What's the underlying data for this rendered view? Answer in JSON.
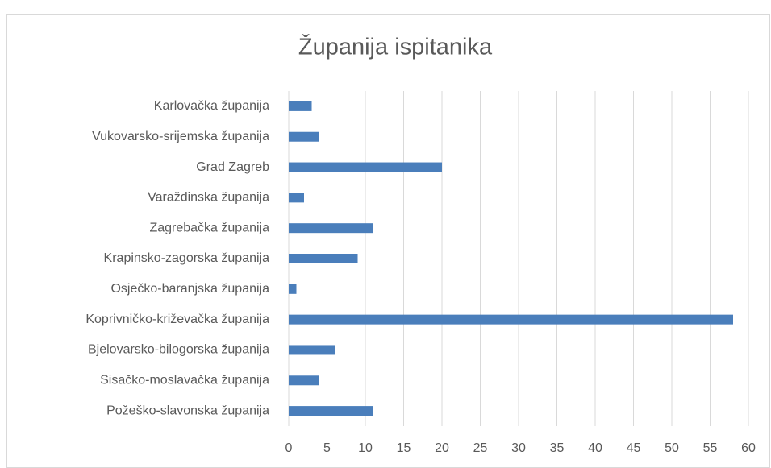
{
  "chart_data": {
    "type": "bar",
    "orientation": "horizontal",
    "title": "Županija ispitanika",
    "categories": [
      "Karlovačka županija",
      "Vukovarsko-srijemska županija",
      "Grad Zagreb",
      "Varaždinska županija",
      "Zagrebačka županija",
      "Krapinsko-zagorska županija",
      "Osječko-baranjska županija",
      "Koprivničko-križevačka županija",
      "Bjelovarsko-bilogorska županija",
      "Sisačko-moslavačka županija",
      "Požeško-slavonska županija"
    ],
    "values": [
      3,
      4,
      20,
      2,
      11,
      9,
      1,
      58,
      6,
      4,
      11
    ],
    "color": "#4a7ebb",
    "xlim": [
      0,
      60
    ],
    "xticks": [
      0,
      5,
      10,
      15,
      20,
      25,
      30,
      35,
      40,
      45,
      50,
      55,
      60
    ],
    "grid": true
  }
}
